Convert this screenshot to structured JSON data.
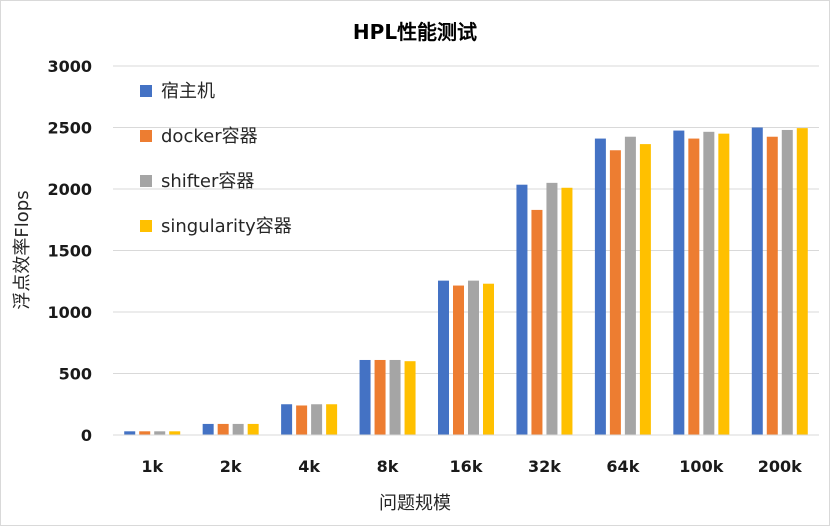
{
  "chart_data": {
    "type": "bar",
    "title": "HPL性能测试",
    "xlabel": "问题规模",
    "ylabel": "浮点效率Flops",
    "ylim": [
      0,
      3000
    ],
    "yticks": [
      0,
      500,
      1000,
      1500,
      2000,
      2500,
      3000
    ],
    "grid": true,
    "legend_position": "top-left",
    "categories": [
      "1k",
      "2k",
      "4k",
      "8k",
      "16k",
      "32k",
      "64k",
      "100k",
      "200k"
    ],
    "series": [
      {
        "name": "宿主机",
        "color": "#4472c4",
        "values": [
          30,
          90,
          250,
          610,
          1255,
          2035,
          2410,
          2475,
          2500
        ]
      },
      {
        "name": "docker容器",
        "color": "#ed7d31",
        "values": [
          30,
          90,
          240,
          610,
          1215,
          1830,
          2315,
          2410,
          2425
        ]
      },
      {
        "name": "shifter容器",
        "color": "#a5a5a5",
        "values": [
          30,
          90,
          250,
          610,
          1255,
          2050,
          2425,
          2465,
          2480
        ]
      },
      {
        "name": "singularity容器",
        "color": "#ffc000",
        "values": [
          30,
          90,
          250,
          600,
          1230,
          2010,
          2365,
          2450,
          2495
        ]
      }
    ]
  }
}
